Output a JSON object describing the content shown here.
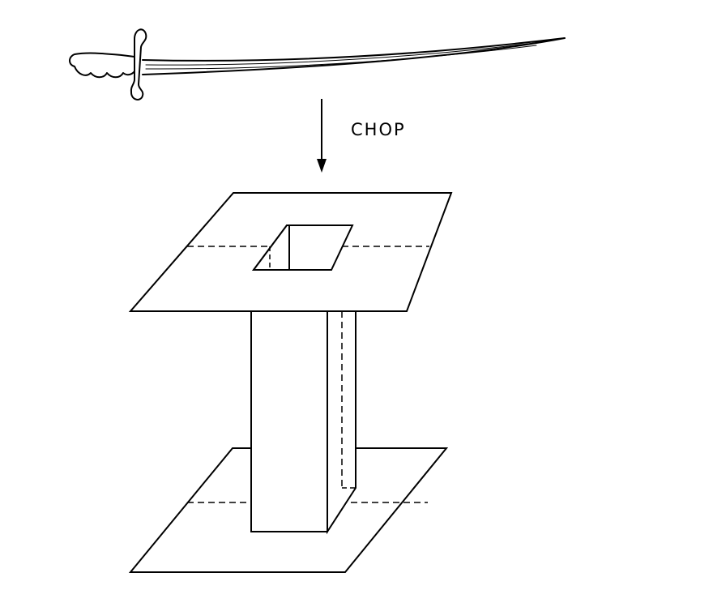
{
  "annotation": {
    "action_label": "CHOP"
  },
  "style": {
    "ink_color": "#000000",
    "paper_color": "#ffffff"
  }
}
